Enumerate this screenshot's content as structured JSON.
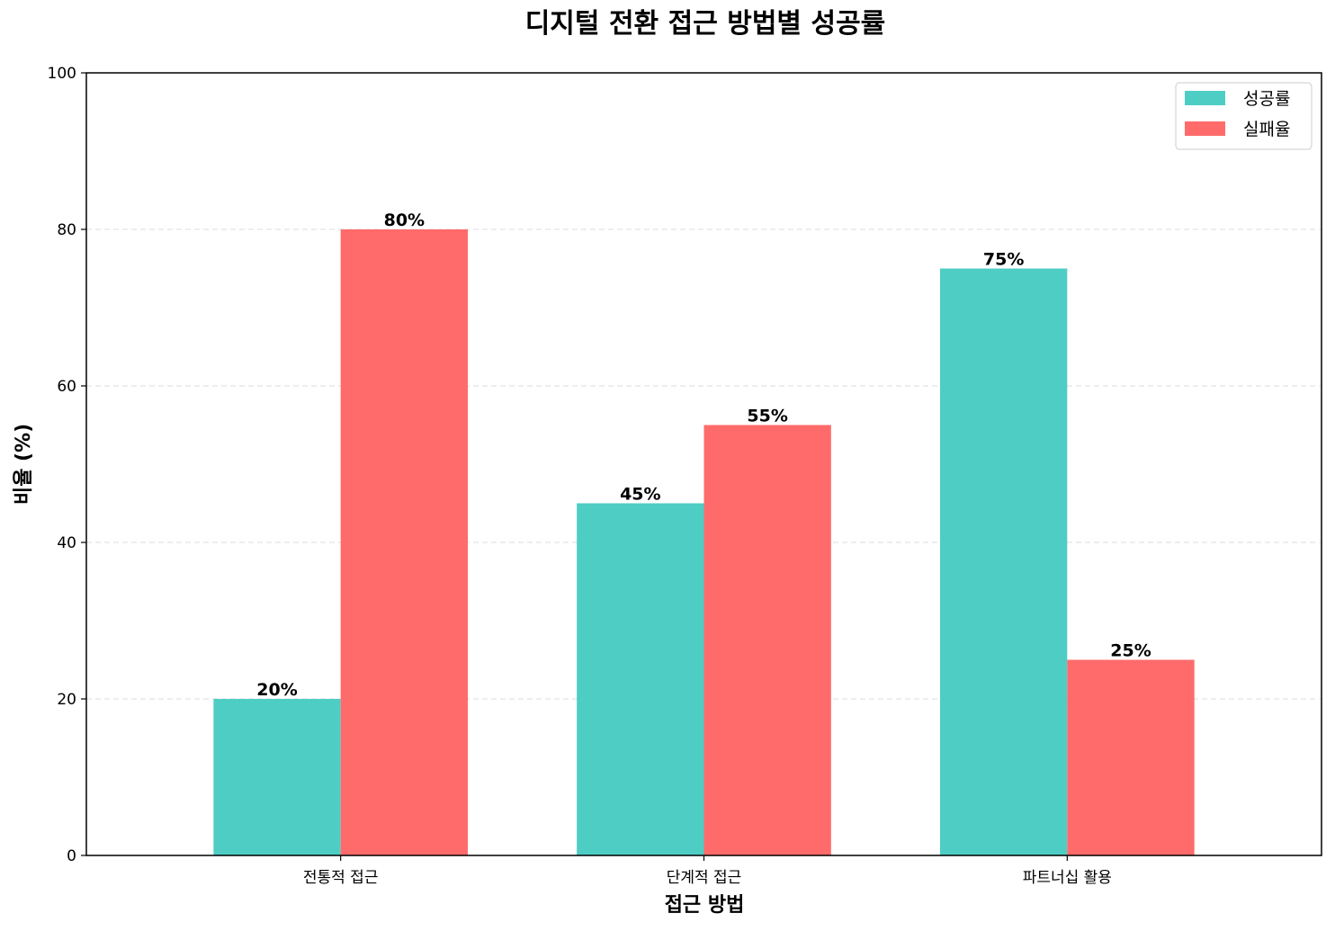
{
  "chart_data": {
    "type": "bar",
    "title": "디지털 전환 접근 방법별 성공률",
    "xlabel": "접근 방법",
    "ylabel": "비율 (%)",
    "categories": [
      "전통적 접근",
      "단계적 접근",
      "파트너십 활용"
    ],
    "series": [
      {
        "name": "성공률",
        "values": [
          20,
          45,
          75
        ],
        "color": "#4ECDC4"
      },
      {
        "name": "실패율",
        "values": [
          80,
          55,
          25
        ],
        "color": "#FF6B6B"
      }
    ],
    "value_suffix": "%",
    "ylim": [
      0,
      100
    ],
    "yticks": [
      0,
      20,
      40,
      60,
      80,
      100
    ],
    "grid": "y-dashed",
    "legend_position": "top-right"
  }
}
